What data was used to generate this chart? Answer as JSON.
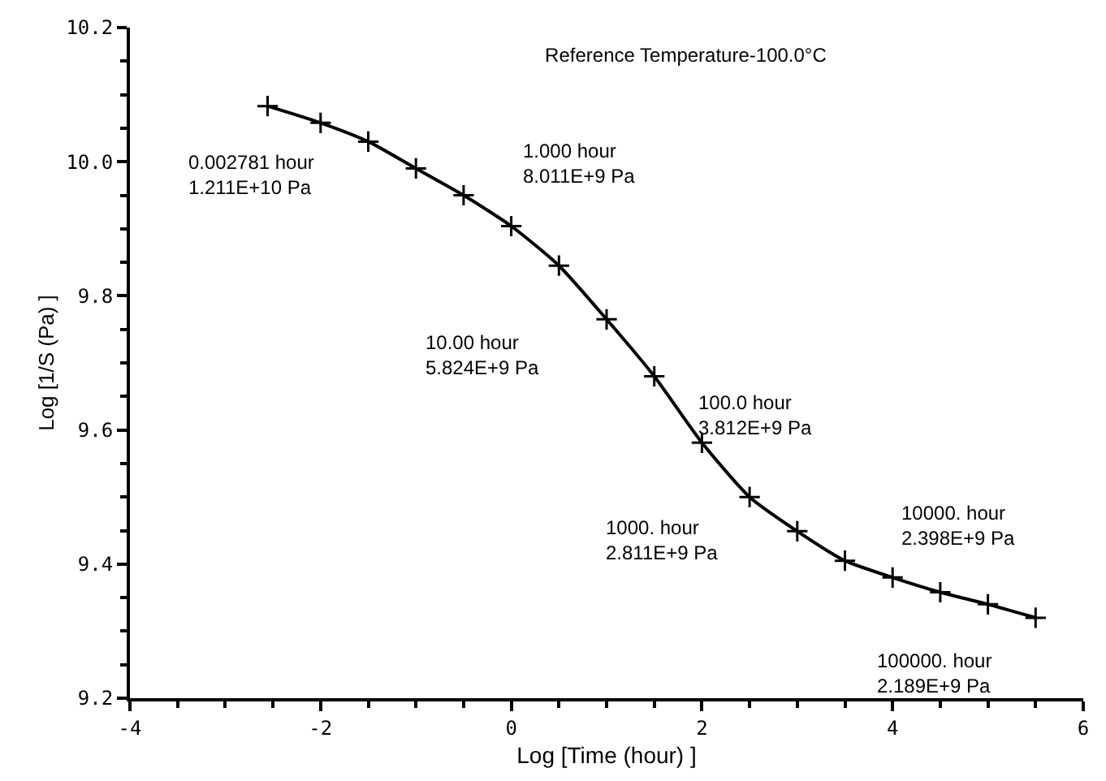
{
  "chart_data": {
    "type": "line",
    "title": "Reference Temperature-100.0°C",
    "xlabel": "Log [Time (hour) ]",
    "ylabel": "Log [1/S (Pa) ]",
    "x": [
      -2.556,
      -2.0,
      -1.5,
      -1.0,
      -0.5,
      0.0,
      0.5,
      1.0,
      1.5,
      2.0,
      2.5,
      3.0,
      3.5,
      4.0,
      4.5,
      5.0,
      5.5
    ],
    "values": [
      10.083,
      10.058,
      10.03,
      9.99,
      9.95,
      9.904,
      9.845,
      9.765,
      9.68,
      9.581,
      9.5,
      9.449,
      9.405,
      9.38,
      9.358,
      9.34,
      9.32
    ],
    "color": "#000000",
    "marker": "cross",
    "line_style": "solid",
    "xlim": [
      -4,
      6
    ],
    "xticks": [
      -4,
      -2,
      0,
      2,
      4,
      6
    ],
    "ylim": [
      9.2,
      10.2
    ],
    "yticks": [
      9.2,
      9.4,
      9.6,
      9.8,
      {
        "value": 10,
        "label": "10.0"
      },
      10.2
    ],
    "annotations": [
      {
        "text": "0.002781 hour\n1.211E+10 Pa",
        "x": -2.556,
        "y": 10.083
      },
      {
        "text": "1.000 hour\n8.011E+9 Pa",
        "x": 0.0,
        "y": 9.904
      },
      "10.00 hour\n5.824E+9 Pa",
      {
        "text": "100.0 hour\n3.812E+9 Pa",
        "x": 2.0,
        "y": 9.581
      },
      "1000. hour\n2.811E+9 Pa",
      {
        "text": "10000. hour\n2.398E+9 Pa",
        "x": 4.0,
        "y": 9.38
      },
      {
        "text": "100000. hour\n2.189E+9 Pa",
        "x": 5.0,
        "y": 9.34
      }
    ]
  }
}
